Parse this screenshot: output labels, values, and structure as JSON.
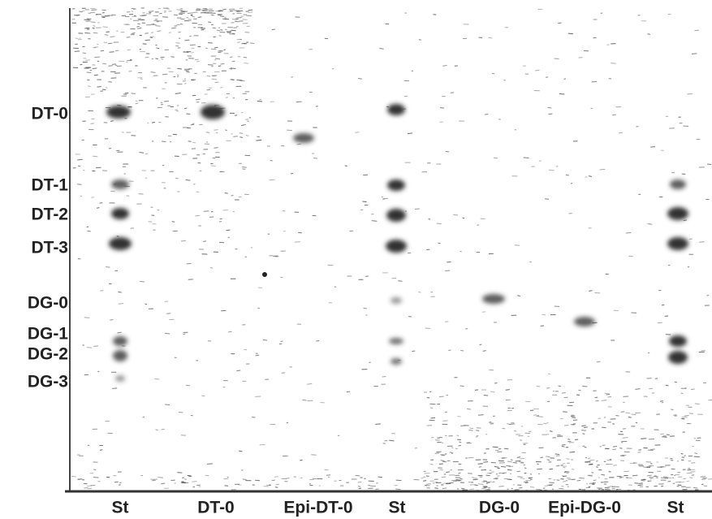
{
  "row_labels": [
    "DT-0",
    "DT-1",
    "DT-2",
    "DT-3",
    "DG-0",
    "DG-1",
    "DG-2",
    "DG-3"
  ],
  "lane_labels": [
    "St",
    "DT-0",
    "Epi-DT-0",
    "St",
    "DG-0",
    "Epi-DG-0",
    "St"
  ]
}
